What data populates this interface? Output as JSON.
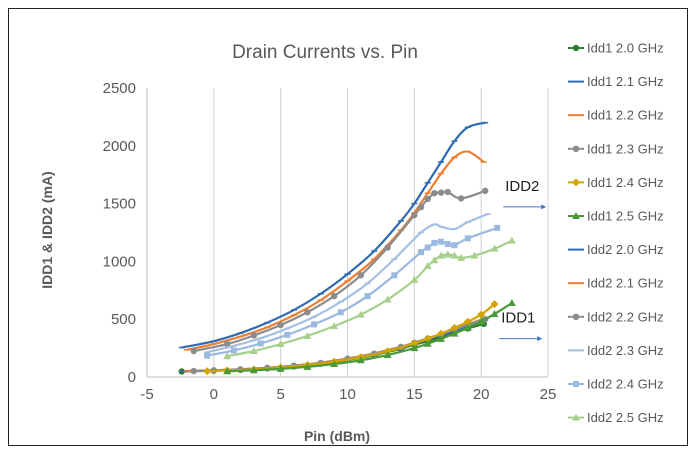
{
  "chart_data": {
    "type": "line",
    "title": "Drain Currents vs. Pin",
    "xlabel": "Pin (dBm)",
    "ylabel": "IDD1 & IDD2 (mA)",
    "xlim": [
      -5,
      25
    ],
    "ylim": [
      0,
      2500
    ],
    "xticks": [
      -5,
      0,
      5,
      10,
      15,
      20,
      25
    ],
    "yticks": [
      0,
      500,
      1000,
      1500,
      2000,
      2500
    ],
    "grid": "vertical",
    "legend_position": "right",
    "annotations": [
      {
        "text": "IDD2",
        "x": 21.8,
        "y": 1610
      },
      {
        "text": "IDD1",
        "x": 21.5,
        "y": 470
      }
    ],
    "series": [
      {
        "name": "Idd1 2.0 GHz",
        "color": "#2e7d32",
        "marker": "circle",
        "x": [
          -2.4,
          0,
          2,
          4,
          6,
          8,
          10,
          12,
          14,
          15,
          16,
          17,
          18,
          19,
          20.2
        ],
        "y": [
          48,
          55,
          62,
          75,
          92,
          115,
          148,
          190,
          245,
          280,
          310,
          345,
          385,
          420,
          460
        ]
      },
      {
        "name": "Idd1 2.1 GHz",
        "color": "#2e6bb4",
        "marker": "dash",
        "x": [
          -2.3,
          0,
          2,
          4,
          6,
          8,
          10,
          12,
          14,
          15,
          16,
          17,
          18,
          19,
          20.3
        ],
        "y": [
          50,
          57,
          65,
          78,
          96,
          120,
          155,
          198,
          255,
          290,
          325,
          360,
          400,
          440,
          490
        ]
      },
      {
        "name": "Idd1 2.2 GHz",
        "color": "#ed7d31",
        "marker": "dash",
        "x": [
          -2,
          0,
          2,
          4,
          6,
          8,
          10,
          12,
          14,
          15,
          16,
          17,
          18,
          19,
          20.2
        ],
        "y": [
          52,
          59,
          67,
          80,
          99,
          124,
          160,
          205,
          262,
          298,
          335,
          372,
          412,
          455,
          505
        ]
      },
      {
        "name": "Idd1 2.3 GHz",
        "color": "#8c8c8c",
        "marker": "circle",
        "x": [
          -1.5,
          0,
          2,
          4,
          6,
          8,
          10,
          12,
          14,
          15,
          16,
          17,
          18,
          19,
          20.3
        ],
        "y": [
          52,
          58,
          66,
          79,
          98,
          122,
          158,
          202,
          260,
          296,
          333,
          370,
          410,
          452,
          500
        ]
      },
      {
        "name": "Idd1 2.4 GHz",
        "color": "#d4a500",
        "marker": "diamond",
        "x": [
          -0.5,
          1,
          3,
          5,
          7,
          9,
          11,
          13,
          15,
          16,
          17,
          18,
          19,
          20,
          21
        ],
        "y": [
          50,
          56,
          66,
          82,
          104,
          133,
          172,
          222,
          290,
          330,
          375,
          425,
          478,
          540,
          630
        ]
      },
      {
        "name": "Idd1 2.5 GHz",
        "color": "#4a9a3a",
        "marker": "triangle",
        "x": [
          1,
          3,
          5,
          7,
          9,
          11,
          13,
          15,
          16,
          17,
          18,
          19,
          20,
          21,
          22.3
        ],
        "y": [
          50,
          58,
          70,
          88,
          112,
          145,
          190,
          250,
          288,
          330,
          375,
          425,
          480,
          545,
          640
        ]
      },
      {
        "name": "Idd2 2.0 GHz",
        "color": "#2e6bb4",
        "marker": "dash",
        "x": [
          -2.4,
          0,
          2,
          4,
          6,
          8,
          10,
          12,
          14,
          15,
          16,
          17,
          18,
          19,
          20.3
        ],
        "y": [
          255,
          310,
          380,
          470,
          580,
          720,
          890,
          1090,
          1350,
          1500,
          1680,
          1860,
          2040,
          2160,
          2200
        ]
      },
      {
        "name": "Idd2 2.1 GHz",
        "color": "#ed7d31",
        "marker": "dash",
        "x": [
          -2,
          0,
          2,
          4,
          6,
          8,
          10,
          12,
          14,
          15,
          16,
          17,
          18,
          19,
          20.2
        ],
        "y": [
          235,
          285,
          350,
          430,
          535,
          665,
          830,
          1020,
          1270,
          1420,
          1590,
          1760,
          1900,
          1950,
          1860
        ]
      },
      {
        "name": "Idd2 2.2 GHz",
        "color": "#8c8c8c",
        "marker": "circle",
        "x": [
          -1.5,
          1,
          3,
          5,
          7,
          9,
          11,
          13,
          15,
          15.5,
          16,
          16.5,
          17,
          17.5,
          18.5,
          20.3
        ],
        "y": [
          225,
          285,
          360,
          450,
          560,
          700,
          880,
          1120,
          1400,
          1470,
          1540,
          1590,
          1595,
          1600,
          1545,
          1610
        ]
      },
      {
        "name": "Idd2 2.3 GHz",
        "color": "#a6bfe3",
        "marker": "dash",
        "x": [
          -0.5,
          1.5,
          3.5,
          5.5,
          7.5,
          9.5,
          11.5,
          13.5,
          15.5,
          16.5,
          17,
          18,
          19,
          20.5
        ],
        "y": [
          215,
          270,
          335,
          420,
          520,
          650,
          810,
          1020,
          1250,
          1320,
          1300,
          1280,
          1340,
          1410
        ]
      },
      {
        "name": "Idd2 2.4 GHz",
        "color": "#9ab8e0",
        "marker": "square",
        "x": [
          -0.5,
          1.5,
          3.5,
          5.5,
          7.5,
          9.5,
          11.5,
          13.5,
          15.5,
          16,
          16.5,
          17,
          17.5,
          18,
          19,
          21.2
        ],
        "y": [
          185,
          230,
          290,
          365,
          455,
          560,
          700,
          880,
          1080,
          1120,
          1160,
          1170,
          1150,
          1140,
          1200,
          1290
        ]
      },
      {
        "name": "Idd2 2.5 GHz",
        "color": "#a8d08d",
        "marker": "triangle",
        "x": [
          1,
          3,
          5,
          7,
          9,
          11,
          13,
          15,
          16,
          16.5,
          17,
          17.5,
          18,
          18.5,
          19.5,
          21,
          22.3
        ],
        "y": [
          180,
          225,
          285,
          355,
          440,
          540,
          670,
          840,
          960,
          1010,
          1050,
          1060,
          1050,
          1030,
          1050,
          1110,
          1180
        ]
      }
    ]
  }
}
